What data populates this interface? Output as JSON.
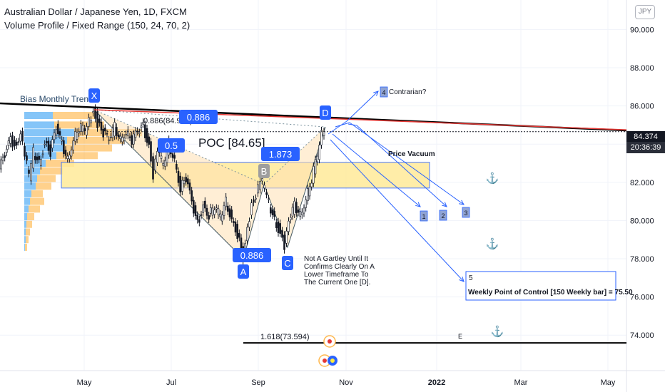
{
  "header": {
    "title": "Australian Dollar / Japanese Yen, 1D, FXCM",
    "indicator": "Volume Profile / Fixed Range (150, 24, 70, 2)",
    "currency": "JPY"
  },
  "price_label": {
    "price": "84.374",
    "time": "20:36:39"
  },
  "colors": {
    "up": "#26a69a",
    "down": "#ef5350",
    "candle": "#131722",
    "trendline": "#000000",
    "poc_line": "#e53935",
    "projection": "#2962ff",
    "zone_fill": "#ffeb99",
    "zone_border": "#2962ff",
    "vp_blue": "#2196f3",
    "vp_orange": "#ff9800"
  },
  "chart_data": {
    "type": "line",
    "title": "Australian Dollar / Japanese Yen, 1D, FXCM",
    "xlabel": "",
    "ylabel": "",
    "ylim": [
      72.2,
      91.2
    ],
    "y_ticks": [
      "90.000",
      "88.000",
      "86.000",
      "84.000",
      "82.000",
      "80.000",
      "78.000",
      "76.000",
      "74.000"
    ],
    "x_ticks": [
      "May",
      "Jul",
      "Sep",
      "Nov",
      "2022",
      "Mar",
      "May"
    ],
    "series": [
      {
        "values": [
          [
            0,
            82.7
          ],
          [
            8,
            83.4
          ],
          [
            16,
            84.2
          ],
          [
            22,
            83.9
          ],
          [
            30,
            84.6
          ],
          [
            36,
            83.5
          ],
          [
            42,
            82.3
          ],
          [
            48,
            83.6
          ],
          [
            56,
            83.0
          ],
          [
            64,
            84.1
          ],
          [
            72,
            83.6
          ],
          [
            80,
            84.8
          ],
          [
            88,
            84.0
          ],
          [
            96,
            83.2
          ],
          [
            104,
            84.3
          ],
          [
            112,
            84.9
          ],
          [
            120,
            84.7
          ],
          [
            126,
            85.2
          ],
          [
            132,
            85.8
          ],
          [
            138,
            85.1
          ],
          [
            146,
            84.6
          ],
          [
            154,
            84.2
          ],
          [
            162,
            84.9
          ],
          [
            170,
            84.3
          ],
          [
            178,
            84.7
          ],
          [
            186,
            84.2
          ],
          [
            194,
            84.6
          ],
          [
            202,
            84.9
          ],
          [
            210,
            83.9
          ],
          [
            216,
            82.4
          ],
          [
            222,
            83.6
          ],
          [
            230,
            82.9
          ],
          [
            238,
            84.0
          ],
          [
            246,
            83.2
          ],
          [
            254,
            81.7
          ],
          [
            262,
            82.2
          ],
          [
            270,
            80.9
          ],
          [
            278,
            79.8
          ],
          [
            286,
            80.8
          ],
          [
            294,
            80.3
          ],
          [
            302,
            80.7
          ],
          [
            310,
            80.2
          ],
          [
            318,
            81.0
          ],
          [
            326,
            80.1
          ],
          [
            334,
            79.3
          ],
          [
            342,
            78.0
          ],
          [
            348,
            79.4
          ],
          [
            354,
            80.9
          ],
          [
            360,
            81.4
          ],
          [
            366,
            82.2
          ],
          [
            372,
            81.7
          ],
          [
            378,
            80.9
          ],
          [
            386,
            80.0
          ],
          [
            394,
            79.4
          ],
          [
            400,
            78.6
          ],
          [
            406,
            79.8
          ],
          [
            414,
            80.8
          ],
          [
            422,
            80.3
          ],
          [
            430,
            81.2
          ],
          [
            438,
            82.2
          ],
          [
            446,
            83.4
          ],
          [
            452,
            84.5
          ],
          [
            456,
            84.9
          ]
        ]
      }
    ],
    "annotations": [
      {
        "label": "X",
        "x": 132,
        "price": 85.8
      },
      {
        "label": "A",
        "x": 341,
        "price": 78.0
      },
      {
        "label": "B",
        "x": 370,
        "price": 81.9
      },
      {
        "label": "C",
        "x": 403,
        "price": 78.6
      },
      {
        "label": "D",
        "x": 456,
        "price": 84.9
      }
    ],
    "ratios": [
      {
        "label": "0.5",
        "price": 83.7
      },
      {
        "label": "0.886",
        "price": 85.3
      },
      {
        "label": "1.873",
        "price": 83.0
      },
      {
        "label": "0.886",
        "price": 78.2
      }
    ],
    "poc_price": 84.65,
    "fib_886_price": 84.901,
    "fib_1618_price": 73.594,
    "vacuum_zone": [
      81.7,
      83.05
    ],
    "texts": {
      "bias": "Bias Monthly Trend",
      "fib886": "0.886(84.901)",
      "poc": "POC [84.65]",
      "vacuum": "Price Vacuum",
      "contrarian": "Contrarian?",
      "note": [
        "Not A Gartley Until It",
        "Confirms Clearly On A",
        "Lower Timeframe To",
        "The Current One [D]."
      ],
      "weekly_num": "5",
      "weekly": "Weekly Point of Control [150 Weekly bar] = 75.50",
      "fib1618": "1.618(73.594)",
      "e": "E",
      "targets": [
        "1",
        "2",
        "3",
        "4"
      ]
    },
    "grid": true,
    "legend": "none"
  }
}
